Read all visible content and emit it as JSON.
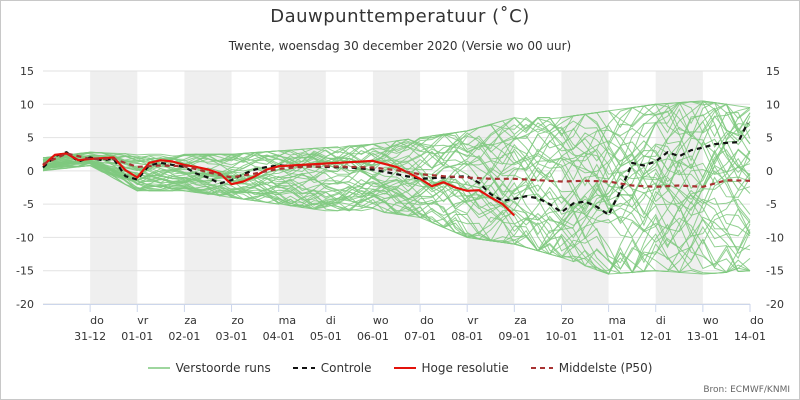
{
  "chart_data": {
    "type": "line",
    "title": "Dauwpunttemperatuur (˚C)",
    "subtitle": "Twente, woensdag 30 december 2020 (Versie wo 00 uur)",
    "credit": "Bron: ECMWF/KNMI",
    "ylim": [
      -20,
      15
    ],
    "yticks": [
      "15",
      "10",
      "5",
      "0",
      "-5",
      "-10",
      "-15",
      "-20"
    ],
    "ytick_values": [
      15,
      10,
      5,
      0,
      -5,
      -10,
      -15,
      -20
    ],
    "xlim": [
      0,
      15
    ],
    "x_unit": "days from 30-12-2020 00 uur",
    "shaded_days": [
      1,
      3,
      5,
      7,
      9,
      11,
      13
    ],
    "x_labels": [
      {
        "day": "do",
        "date": "31-12",
        "x": 1
      },
      {
        "day": "vr",
        "date": "01-01",
        "x": 2
      },
      {
        "day": "za",
        "date": "02-01",
        "x": 3
      },
      {
        "day": "zo",
        "date": "03-01",
        "x": 4
      },
      {
        "day": "ma",
        "date": "04-01",
        "x": 5
      },
      {
        "day": "di",
        "date": "05-01",
        "x": 6
      },
      {
        "day": "wo",
        "date": "06-01",
        "x": 7
      },
      {
        "day": "do",
        "date": "07-01",
        "x": 8
      },
      {
        "day": "vr",
        "date": "08-01",
        "x": 9
      },
      {
        "day": "za",
        "date": "09-01",
        "x": 10
      },
      {
        "day": "zo",
        "date": "10-01",
        "x": 11
      },
      {
        "day": "ma",
        "date": "11-01",
        "x": 12
      },
      {
        "day": "di",
        "date": "12-01",
        "x": 13
      },
      {
        "day": "wo",
        "date": "13-01",
        "x": 14
      },
      {
        "day": "do",
        "date": "14-01",
        "x": 15
      }
    ],
    "legend": [
      {
        "key": "ens",
        "label": "Verstoorde runs",
        "color": "#7fc97f",
        "dash": ""
      },
      {
        "key": "ctrl",
        "label": "Controle",
        "color": "#111111",
        "dash": "5,4"
      },
      {
        "key": "hres",
        "label": "Hoge resolutie",
        "color": "#e3120b",
        "dash": ""
      },
      {
        "key": "p50",
        "label": "Middelste (P50)",
        "color": "#a83232",
        "dash": "5,4"
      }
    ],
    "series": [
      {
        "name": "Controle",
        "color": "#111111",
        "dash": "5,4",
        "x": [
          0,
          0.25,
          0.5,
          0.75,
          1,
          1.25,
          1.5,
          1.75,
          2,
          2.25,
          2.5,
          2.75,
          3,
          3.25,
          3.5,
          3.75,
          4,
          4.25,
          4.5,
          4.75,
          5,
          5.5,
          6,
          6.5,
          7,
          7.5,
          8,
          8.5,
          9,
          9.25,
          9.5,
          9.75,
          10,
          10.25,
          10.5,
          10.75,
          11,
          11.25,
          11.5,
          11.75,
          12,
          12.25,
          12.5,
          12.75,
          13,
          13.25,
          13.5,
          13.75,
          14,
          14.25,
          14.5,
          14.75,
          14.95
        ],
        "values": [
          0.5,
          2.2,
          2.8,
          1.4,
          2.0,
          1.6,
          1.8,
          -0.8,
          -1.3,
          0.8,
          1.2,
          0.9,
          0.6,
          -0.4,
          -1.0,
          -1.9,
          -1.4,
          -0.5,
          0.2,
          0.6,
          0.8,
          0.7,
          0.6,
          0.5,
          0.2,
          -0.5,
          -1.2,
          -1.0,
          -0.8,
          -1.8,
          -3.5,
          -4.5,
          -4.2,
          -3.8,
          -4.1,
          -5.0,
          -6.2,
          -4.9,
          -4.6,
          -5.4,
          -6.6,
          -3.0,
          1.2,
          0.8,
          1.4,
          2.8,
          2.2,
          3.1,
          3.5,
          4.0,
          4.2,
          4.3,
          7.2
        ]
      },
      {
        "name": "Hoge resolutie",
        "color": "#e3120b",
        "dash": "",
        "x": [
          0,
          0.25,
          0.5,
          0.75,
          1,
          1.25,
          1.5,
          1.75,
          2,
          2.25,
          2.5,
          2.75,
          3,
          3.25,
          3.5,
          3.75,
          4,
          4.25,
          4.5,
          4.75,
          5,
          5.5,
          6,
          6.5,
          7,
          7.5,
          8,
          8.25,
          8.5,
          8.75,
          9,
          9.25,
          9.5,
          9.75,
          10
        ],
        "values": [
          0.8,
          2.4,
          2.6,
          1.6,
          1.8,
          1.9,
          2.0,
          0.1,
          -1.0,
          1.2,
          1.6,
          1.4,
          0.9,
          0.6,
          0.2,
          -0.4,
          -2.0,
          -1.6,
          -0.8,
          0.2,
          0.7,
          0.9,
          1.1,
          1.3,
          1.5,
          0.6,
          -1.2,
          -2.3,
          -1.7,
          -2.5,
          -3.0,
          -2.9,
          -4.0,
          -5.0,
          -6.7
        ]
      },
      {
        "name": "Middelste (P50)",
        "color": "#a83232",
        "dash": "5,4",
        "x": [
          0,
          0.5,
          1,
          1.5,
          2,
          2.5,
          3,
          3.5,
          4,
          4.5,
          5,
          5.5,
          6,
          6.5,
          7,
          7.5,
          8,
          8.5,
          9,
          9.5,
          10,
          10.5,
          11,
          11.5,
          12,
          12.5,
          13,
          13.5,
          14,
          14.5,
          15
        ],
        "values": [
          1.0,
          2.6,
          1.8,
          1.8,
          0.6,
          0.8,
          0.7,
          -0.2,
          -1.0,
          -0.4,
          0.3,
          0.6,
          0.7,
          0.6,
          0.5,
          0.1,
          -0.5,
          -0.8,
          -1.0,
          -1.2,
          -1.2,
          -1.4,
          -1.6,
          -1.5,
          -1.6,
          -2.2,
          -2.4,
          -2.2,
          -2.4,
          -1.4,
          -1.5
        ]
      }
    ],
    "ensemble": {
      "name": "Verstoorde runs",
      "color": "#7fc97f",
      "members": 50,
      "x_step": 0.25,
      "spread": [
        {
          "x": 0,
          "low": 0,
          "high": 2
        },
        {
          "x": 1,
          "low": 0.8,
          "high": 2.8
        },
        {
          "x": 2,
          "low": -3,
          "high": 2.5
        },
        {
          "x": 3,
          "low": -3,
          "high": 2.5
        },
        {
          "x": 4,
          "low": -4,
          "high": 2.5
        },
        {
          "x": 5,
          "low": -5,
          "high": 3
        },
        {
          "x": 6,
          "low": -6,
          "high": 3.5
        },
        {
          "x": 7,
          "low": -6,
          "high": 4
        },
        {
          "x": 8,
          "low": -7,
          "high": 5
        },
        {
          "x": 9,
          "low": -10,
          "high": 6
        },
        {
          "x": 10,
          "low": -11,
          "high": 8
        },
        {
          "x": 11,
          "low": -13,
          "high": 8
        },
        {
          "x": 12,
          "low": -15.5,
          "high": 9
        },
        {
          "x": 13,
          "low": -15,
          "high": 10
        },
        {
          "x": 14,
          "low": -15.5,
          "high": 10.5
        },
        {
          "x": 15,
          "low": -15,
          "high": 9.5
        }
      ]
    }
  }
}
